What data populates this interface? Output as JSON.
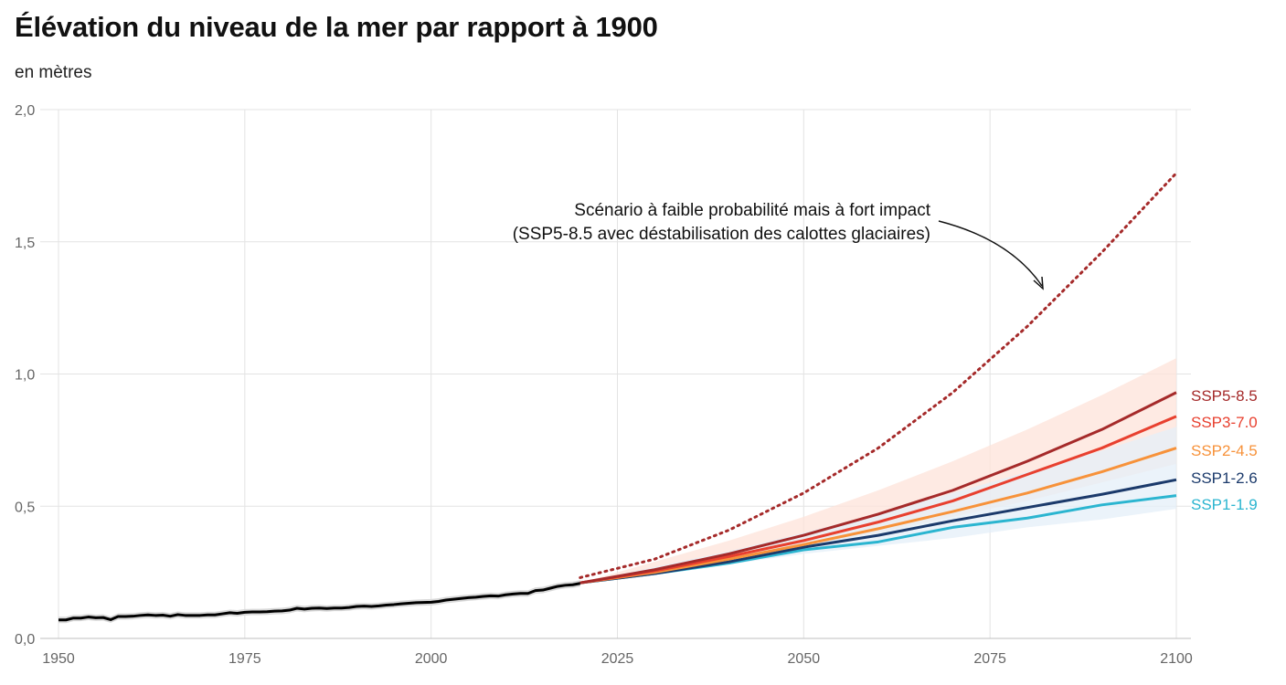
{
  "title": "Élévation du niveau de la mer par rapport à 1900",
  "subtitle": "en mètres",
  "chart_data": {
    "type": "line",
    "title": "Élévation du niveau de la mer par rapport à 1900",
    "subtitle": "en mètres",
    "xlabel": "",
    "ylabel": "",
    "xlim": [
      1950,
      2100
    ],
    "ylim": [
      0,
      2
    ],
    "x_ticks": [
      1950,
      1975,
      2000,
      2025,
      2050,
      2075,
      2100
    ],
    "x_tick_labels": [
      "1950",
      "1975",
      "2000",
      "2025",
      "2050",
      "2075",
      "2100"
    ],
    "y_ticks": [
      0,
      0.5,
      1,
      1.5,
      2
    ],
    "y_tick_labels": [
      "0,0",
      "0,5",
      "1,0",
      "1,5",
      "2,0"
    ],
    "grid": true,
    "legend": "labels at line ends (right)",
    "observed": {
      "color": "#000000",
      "band_color": "#d9d9d9",
      "x": [
        1950,
        1951,
        1952,
        1953,
        1954,
        1955,
        1956,
        1957,
        1958,
        1959,
        1960,
        1961,
        1962,
        1963,
        1964,
        1965,
        1966,
        1967,
        1968,
        1969,
        1970,
        1971,
        1972,
        1973,
        1974,
        1975,
        1976,
        1977,
        1978,
        1979,
        1980,
        1981,
        1982,
        1983,
        1984,
        1985,
        1986,
        1987,
        1988,
        1989,
        1990,
        1991,
        1992,
        1993,
        1994,
        1995,
        1996,
        1997,
        1998,
        1999,
        2000,
        2001,
        2002,
        2003,
        2004,
        2005,
        2006,
        2007,
        2008,
        2009,
        2010,
        2011,
        2012,
        2013,
        2014,
        2015,
        2016,
        2017,
        2018,
        2019,
        2020
      ],
      "y": [
        0.07,
        0.07,
        0.077,
        0.077,
        0.081,
        0.078,
        0.079,
        0.071,
        0.083,
        0.083,
        0.084,
        0.087,
        0.089,
        0.087,
        0.088,
        0.084,
        0.09,
        0.087,
        0.087,
        0.087,
        0.089,
        0.089,
        0.093,
        0.097,
        0.095,
        0.099,
        0.1,
        0.1,
        0.101,
        0.103,
        0.104,
        0.107,
        0.114,
        0.111,
        0.114,
        0.115,
        0.113,
        0.115,
        0.115,
        0.117,
        0.121,
        0.122,
        0.121,
        0.123,
        0.126,
        0.128,
        0.131,
        0.133,
        0.135,
        0.136,
        0.137,
        0.14,
        0.145,
        0.148,
        0.151,
        0.154,
        0.156,
        0.159,
        0.161,
        0.16,
        0.165,
        0.168,
        0.17,
        0.17,
        0.181,
        0.183,
        0.19,
        0.197,
        0.201,
        0.203,
        0.208
      ],
      "band_halfwidth": 0.012
    },
    "x": [
      2020,
      2030,
      2040,
      2050,
      2060,
      2070,
      2080,
      2090,
      2100
    ],
    "series": [
      {
        "name": "SSP5-8.5",
        "color": "#a52a2a",
        "values": [
          0.21,
          0.26,
          0.32,
          0.39,
          0.47,
          0.56,
          0.67,
          0.79,
          0.93
        ]
      },
      {
        "name": "SSP3-7.0",
        "color": "#e8402f",
        "values": [
          0.21,
          0.255,
          0.31,
          0.37,
          0.44,
          0.52,
          0.62,
          0.72,
          0.84
        ]
      },
      {
        "name": "SSP2-4.5",
        "color": "#f7923a",
        "values": [
          0.21,
          0.25,
          0.3,
          0.355,
          0.415,
          0.48,
          0.55,
          0.63,
          0.72
        ]
      },
      {
        "name": "SSP1-2.6",
        "color": "#1b3a6b",
        "values": [
          0.21,
          0.245,
          0.29,
          0.345,
          0.39,
          0.445,
          0.495,
          0.545,
          0.6
        ]
      },
      {
        "name": "SSP1-1.9",
        "color": "#2bb5d0",
        "values": [
          0.21,
          0.245,
          0.285,
          0.335,
          0.365,
          0.42,
          0.455,
          0.505,
          0.54
        ]
      }
    ],
    "high_impact": {
      "color": "#a52a2a",
      "style": "dotted",
      "x": [
        2020,
        2030,
        2040,
        2050,
        2060,
        2070,
        2080,
        2090,
        2100
      ],
      "values": [
        0.23,
        0.3,
        0.41,
        0.55,
        0.72,
        0.93,
        1.18,
        1.46,
        1.76
      ]
    },
    "bands": [
      {
        "color": "#fde3da",
        "upper": [
          0.21,
          0.29,
          0.37,
          0.46,
          0.56,
          0.67,
          0.79,
          0.92,
          1.06
        ],
        "lower": [
          0.21,
          0.245,
          0.3,
          0.355,
          0.4,
          0.46,
          0.52,
          0.59,
          0.66
        ]
      },
      {
        "color": "#e4eff8",
        "upper": [
          0.21,
          0.27,
          0.33,
          0.4,
          0.47,
          0.55,
          0.63,
          0.71,
          0.8
        ],
        "lower": [
          0.21,
          0.24,
          0.28,
          0.32,
          0.35,
          0.38,
          0.42,
          0.45,
          0.49
        ]
      }
    ],
    "annotation": {
      "lines": [
        "Scénario à faible probabilité mais à fort impact",
        "(SSP5-8.5 avec déstabilisation des calottes glaciaires)"
      ]
    }
  }
}
